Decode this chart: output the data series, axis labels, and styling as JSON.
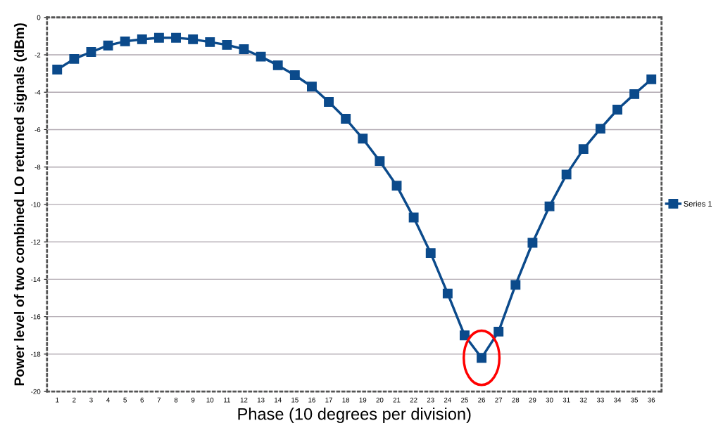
{
  "chart_data": {
    "type": "line",
    "xlabel": "Phase (10 degrees per division)",
    "ylabel": "Power level of two combined LO returned signals (dBm)",
    "categories": [
      "1",
      "2",
      "3",
      "4",
      "5",
      "6",
      "7",
      "8",
      "9",
      "10",
      "11",
      "12",
      "13",
      "14",
      "15",
      "16",
      "17",
      "18",
      "19",
      "20",
      "21",
      "22",
      "23",
      "24",
      "25",
      "26",
      "27",
      "28",
      "29",
      "30",
      "31",
      "32",
      "33",
      "34",
      "35",
      "36"
    ],
    "series": [
      {
        "name": "Series 1",
        "color": "#0b4a8b",
        "values": [
          -2.79,
          -2.22,
          -1.85,
          -1.5,
          -1.28,
          -1.17,
          -1.09,
          -1.09,
          -1.17,
          -1.32,
          -1.47,
          -1.7,
          -2.1,
          -2.56,
          -3.09,
          -3.7,
          -4.52,
          -5.42,
          -6.48,
          -7.68,
          -9.0,
          -10.7,
          -12.6,
          -14.76,
          -17.0,
          -18.2,
          -16.8,
          -14.3,
          -12.05,
          -10.1,
          -8.4,
          -7.04,
          -5.95,
          -4.93,
          -4.1,
          -3.31
        ]
      }
    ],
    "ylim": [
      -20,
      0
    ],
    "yticks": [
      -20,
      -18,
      -16,
      -14,
      -12,
      -10,
      -8,
      -6,
      -4,
      -2,
      0
    ],
    "grid": "y",
    "legend": "right",
    "marker": "square",
    "line_style": "solid"
  }
}
